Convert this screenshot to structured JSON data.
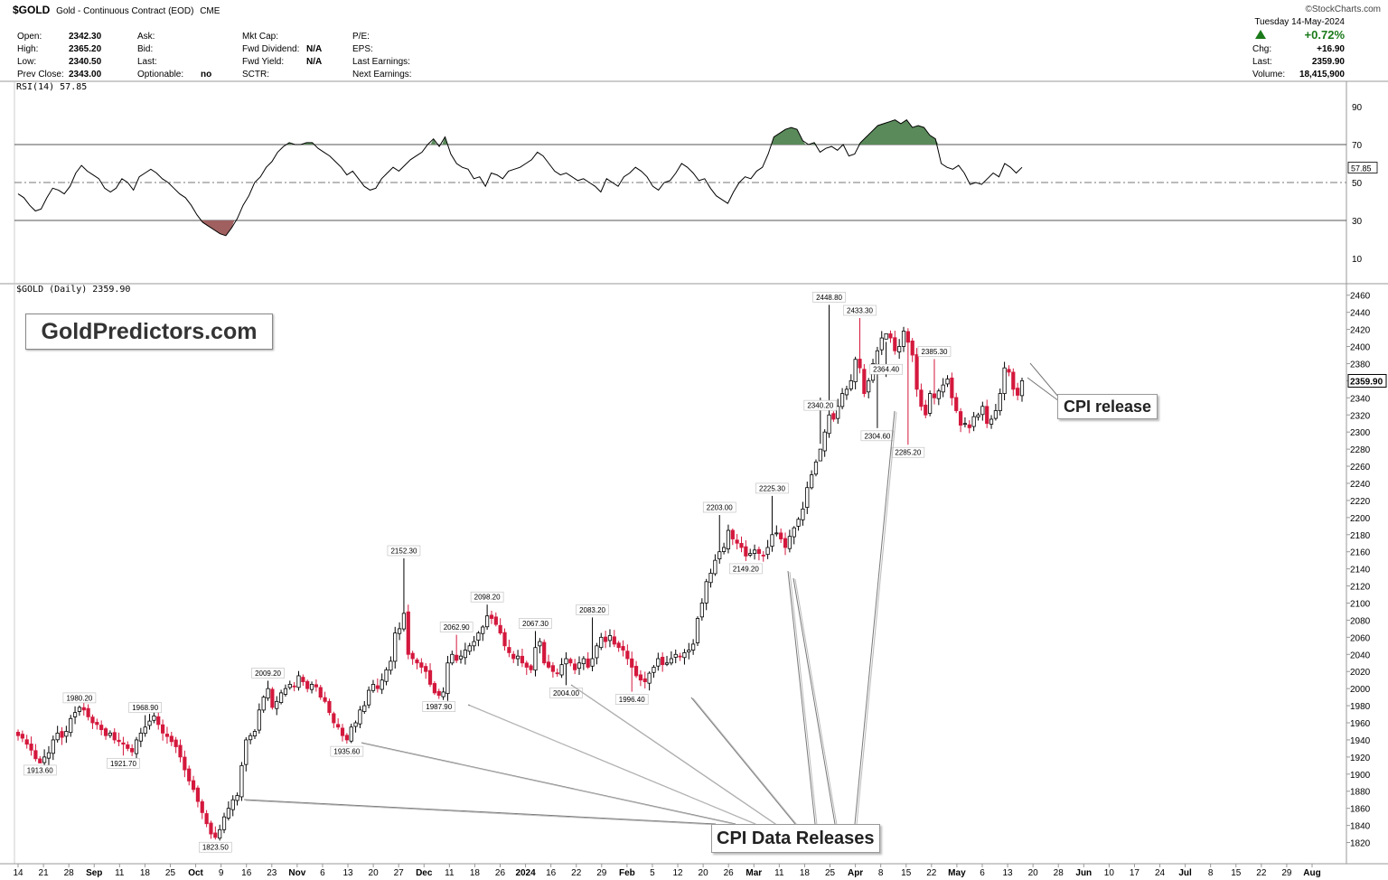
{
  "header": {
    "symbol": "$GOLD",
    "description": "Gold - Continuous Contract (EOD)",
    "exchange": "CME",
    "brand": "©StockCharts.com",
    "date": "Tuesday  14-May-2024",
    "fields": {
      "open_label": "Open:",
      "open": "2342.30",
      "high_label": "High:",
      "high": "2365.20",
      "low_label": "Low:",
      "low": "2340.50",
      "prevclose_label": "Prev Close:",
      "prevclose": "2343.00",
      "ask_label": "Ask:",
      "bid_label": "Bid:",
      "last_label": "Last:",
      "optionable_label": "Optionable:",
      "optionable": "no",
      "mktcap_label": "Mkt Cap:",
      "fwddiv_label": "Fwd Dividend:",
      "fwddiv": "N/A",
      "fwdyield_label": "Fwd Yield:",
      "fwdyield": "N/A",
      "sctr_label": "SCTR:",
      "pe_label": "P/E:",
      "eps_label": "EPS:",
      "lastearn_label": "Last Earnings:",
      "nextearn_label": "Next Earnings:",
      "pct_change": "+0.72%",
      "chg_label": "Chg:",
      "chg": "+16.90",
      "last2_label": "Last:",
      "last2": "2359.90",
      "volume_label": "Volume:",
      "volume": "18,415,900"
    }
  },
  "rsi": {
    "label": "RSI(14) 57.85",
    "current": "57.85",
    "overbought": 70,
    "oversold": 30,
    "mid": 50,
    "ticks": [
      "90",
      "70",
      "50",
      "30",
      "10"
    ],
    "values": [
      44,
      42,
      38,
      35,
      36,
      42,
      47,
      46,
      44,
      48,
      55,
      59,
      56,
      54,
      52,
      47,
      45,
      47,
      52,
      50,
      46,
      53,
      55,
      57,
      55,
      52,
      50,
      47,
      44,
      42,
      38,
      33,
      29,
      27,
      25,
      23,
      22,
      26,
      31,
      38,
      43,
      50,
      53,
      58,
      61,
      66,
      69,
      71,
      70,
      70,
      71,
      71,
      68,
      66,
      64,
      61,
      58,
      54,
      56,
      52,
      48,
      46,
      47,
      52,
      55,
      58,
      56,
      59,
      62,
      64,
      66,
      70,
      73,
      69,
      74,
      65,
      60,
      58,
      57,
      52,
      53,
      48,
      55,
      54,
      52,
      56,
      57,
      58,
      60,
      62,
      66,
      64,
      60,
      56,
      54,
      55,
      53,
      51,
      52,
      50,
      48,
      45,
      52,
      50,
      48,
      53,
      55,
      58,
      56,
      53,
      48,
      46,
      50,
      51,
      55,
      60,
      58,
      55,
      51,
      52,
      47,
      43,
      41,
      39,
      45,
      50,
      53,
      52,
      56,
      58,
      65,
      74,
      76,
      78,
      79,
      78,
      72,
      70,
      71,
      66,
      68,
      69,
      67,
      70,
      64,
      65,
      71,
      74,
      77,
      80,
      81,
      82,
      83,
      81,
      83,
      79,
      80,
      79,
      75,
      73,
      60,
      58,
      57,
      59,
      55,
      49,
      50,
      49,
      52,
      55,
      53,
      60,
      58,
      55,
      58
    ],
    "zones": {
      "over_color": "#5a8a5a",
      "under_color": "#a06060"
    }
  },
  "chart_data": {
    "type": "candlestick",
    "title": "$GOLD (Daily) 2359.90",
    "current_price": "2359.90",
    "ylim": [
      1810,
      2465
    ],
    "y_ticks": [
      "2460",
      "2440",
      "2420",
      "2400",
      "2380",
      "2360",
      "2340",
      "2320",
      "2300",
      "2280",
      "2260",
      "2240",
      "2220",
      "2200",
      "2180",
      "2160",
      "2140",
      "2120",
      "2100",
      "2080",
      "2060",
      "2040",
      "2020",
      "2000",
      "1980",
      "1960",
      "1940",
      "1920",
      "1900",
      "1880",
      "1860",
      "1840",
      "1820"
    ],
    "x_ticks": [
      {
        "label": "14",
        "bold": false
      },
      {
        "label": "21",
        "bold": false
      },
      {
        "label": "28",
        "bold": false
      },
      {
        "label": "Sep",
        "bold": true
      },
      {
        "label": "11",
        "bold": false
      },
      {
        "label": "18",
        "bold": false
      },
      {
        "label": "25",
        "bold": false
      },
      {
        "label": "Oct",
        "bold": true
      },
      {
        "label": "9",
        "bold": false
      },
      {
        "label": "16",
        "bold": false
      },
      {
        "label": "23",
        "bold": false
      },
      {
        "label": "Nov",
        "bold": true
      },
      {
        "label": "6",
        "bold": false
      },
      {
        "label": "13",
        "bold": false
      },
      {
        "label": "20",
        "bold": false
      },
      {
        "label": "27",
        "bold": false
      },
      {
        "label": "Dec",
        "bold": true
      },
      {
        "label": "11",
        "bold": false
      },
      {
        "label": "18",
        "bold": false
      },
      {
        "label": "26",
        "bold": false
      },
      {
        "label": "2024",
        "bold": true
      },
      {
        "label": "16",
        "bold": false
      },
      {
        "label": "22",
        "bold": false
      },
      {
        "label": "29",
        "bold": false
      },
      {
        "label": "Feb",
        "bold": true
      },
      {
        "label": "5",
        "bold": false
      },
      {
        "label": "12",
        "bold": false
      },
      {
        "label": "20",
        "bold": false
      },
      {
        "label": "26",
        "bold": false
      },
      {
        "label": "Mar",
        "bold": true
      },
      {
        "label": "11",
        "bold": false
      },
      {
        "label": "18",
        "bold": false
      },
      {
        "label": "25",
        "bold": false
      },
      {
        "label": "Apr",
        "bold": true
      },
      {
        "label": "8",
        "bold": false
      },
      {
        "label": "15",
        "bold": false
      },
      {
        "label": "22",
        "bold": false
      },
      {
        "label": "May",
        "bold": true
      },
      {
        "label": "6",
        "bold": false
      },
      {
        "label": "13",
        "bold": false
      },
      {
        "label": "20",
        "bold": false
      },
      {
        "label": "28",
        "bold": false
      },
      {
        "label": "Jun",
        "bold": true
      },
      {
        "label": "10",
        "bold": false
      },
      {
        "label": "17",
        "bold": false
      },
      {
        "label": "24",
        "bold": false
      },
      {
        "label": "Jul",
        "bold": true
      },
      {
        "label": "8",
        "bold": false
      },
      {
        "label": "15",
        "bold": false
      },
      {
        "label": "22",
        "bold": false
      },
      {
        "label": "29",
        "bold": false
      },
      {
        "label": "Aug",
        "bold": true
      }
    ],
    "closes": [
      1945,
      1942,
      1935,
      1928,
      1918,
      1913,
      1920,
      1925,
      1940,
      1948,
      1943,
      1950,
      1965,
      1972,
      1978,
      1975,
      1967,
      1960,
      1958,
      1952,
      1945,
      1948,
      1940,
      1938,
      1935,
      1930,
      1926,
      1940,
      1948,
      1955,
      1962,
      1968,
      1958,
      1948,
      1944,
      1938,
      1932,
      1920,
      1905,
      1892,
      1882,
      1868,
      1855,
      1842,
      1830,
      1826,
      1835,
      1850,
      1860,
      1870,
      1875,
      1910,
      1940,
      1945,
      1950,
      1975,
      1990,
      2000,
      1978,
      1985,
      1995,
      2000,
      2005,
      2003,
      2015,
      2008,
      2000,
      2005,
      2002,
      1990,
      1985,
      1972,
      1960,
      1955,
      1945,
      1940,
      1955,
      1960,
      1975,
      1980,
      1998,
      2005,
      2000,
      2010,
      2022,
      2032,
      2065,
      2070,
      2088,
      2040,
      2035,
      2030,
      2025,
      2020,
      2005,
      1995,
      1992,
      1996,
      2030,
      2040,
      2033,
      2038,
      2045,
      2050,
      2055,
      2065,
      2072,
      2085,
      2082,
      2075,
      2065,
      2050,
      2042,
      2035,
      2038,
      2030,
      2025,
      2022,
      2048,
      2055,
      2030,
      2025,
      2020,
      2018,
      2028,
      2035,
      2030,
      2022,
      2030,
      2035,
      2025,
      2035,
      2050,
      2060,
      2055,
      2062,
      2052,
      2048,
      2045,
      2035,
      2025,
      2015,
      2010,
      2008,
      2018,
      2025,
      2035,
      2028,
      2030,
      2035,
      2040,
      2038,
      2042,
      2045,
      2052,
      2082,
      2100,
      2125,
      2135,
      2150,
      2160,
      2165,
      2185,
      2175,
      2170,
      2165,
      2155,
      2158,
      2162,
      2158,
      2156,
      2165,
      2180,
      2182,
      2175,
      2165,
      2178,
      2188,
      2198,
      2210,
      2235,
      2250,
      2265,
      2280,
      2300,
      2320,
      2315,
      2330,
      2345,
      2350,
      2360,
      2385,
      2375,
      2345,
      2360,
      2380,
      2395,
      2410,
      2415,
      2410,
      2395,
      2400,
      2418,
      2405,
      2390,
      2350,
      2330,
      2320,
      2345,
      2340,
      2348,
      2355,
      2362,
      2340,
      2325,
      2308,
      2310,
      2305,
      2318,
      2320,
      2330,
      2310,
      2315,
      2325,
      2345,
      2375,
      2370,
      2350,
      2343,
      2360
    ],
    "annotations": [
      {
        "text": "1913.60",
        "price": 1913.6,
        "i": 5,
        "pos": "below"
      },
      {
        "text": "1980.20",
        "price": 1980.2,
        "i": 14,
        "pos": "above"
      },
      {
        "text": "1921.70",
        "price": 1921.7,
        "i": 24,
        "pos": "below"
      },
      {
        "text": "1968.90",
        "price": 1968.9,
        "i": 29,
        "pos": "above"
      },
      {
        "text": "1823.50",
        "price": 1823.5,
        "i": 45,
        "pos": "below"
      },
      {
        "text": "2009.20",
        "price": 2009.2,
        "i": 57,
        "pos": "above"
      },
      {
        "text": "1935.60",
        "price": 1935.6,
        "i": 75,
        "pos": "below"
      },
      {
        "text": "2152.30",
        "price": 2152.3,
        "i": 88,
        "pos": "above"
      },
      {
        "text": "1987.90",
        "price": 1987.9,
        "i": 96,
        "pos": "below"
      },
      {
        "text": "2062.90",
        "price": 2062.9,
        "i": 100,
        "pos": "above"
      },
      {
        "text": "2098.20",
        "price": 2098.2,
        "i": 107,
        "pos": "above"
      },
      {
        "text": "2067.30",
        "price": 2067.3,
        "i": 118,
        "pos": "above"
      },
      {
        "text": "2004.00",
        "price": 2004.0,
        "i": 125,
        "pos": "below"
      },
      {
        "text": "2083.20",
        "price": 2083.2,
        "i": 131,
        "pos": "above"
      },
      {
        "text": "1996.40",
        "price": 1996.4,
        "i": 140,
        "pos": "below"
      },
      {
        "text": "2203.00",
        "price": 2203.0,
        "i": 160,
        "pos": "above"
      },
      {
        "text": "2149.20",
        "price": 2149.2,
        "i": 166,
        "pos": "below"
      },
      {
        "text": "2225.30",
        "price": 2225.3,
        "i": 172,
        "pos": "above"
      },
      {
        "text": "2448.80",
        "price": 2448.8,
        "i": 185,
        "pos": "above"
      },
      {
        "text": "2340.20",
        "price": 2340.2,
        "i": 183,
        "pos": "below"
      },
      {
        "text": "2433.30",
        "price": 2433.3,
        "i": 192,
        "pos": "above"
      },
      {
        "text": "2364.40",
        "price": 2364.4,
        "i": 198,
        "pos": "above"
      },
      {
        "text": "2304.60",
        "price": 2304.6,
        "i": 196,
        "pos": "below"
      },
      {
        "text": "2285.20",
        "price": 2285.2,
        "i": 203,
        "pos": "below"
      },
      {
        "text": "2385.30",
        "price": 2385.3,
        "i": 209,
        "pos": "above"
      }
    ],
    "colors": {
      "up": "#ffffff",
      "down": "#d4183d",
      "wick_down": "#d4183d",
      "wick_up": "#000000"
    }
  },
  "callouts": {
    "cpi_data_releases": "CPI Data Releases",
    "cpi_release": "CPI release"
  },
  "watermark": "GoldPredictors.com"
}
